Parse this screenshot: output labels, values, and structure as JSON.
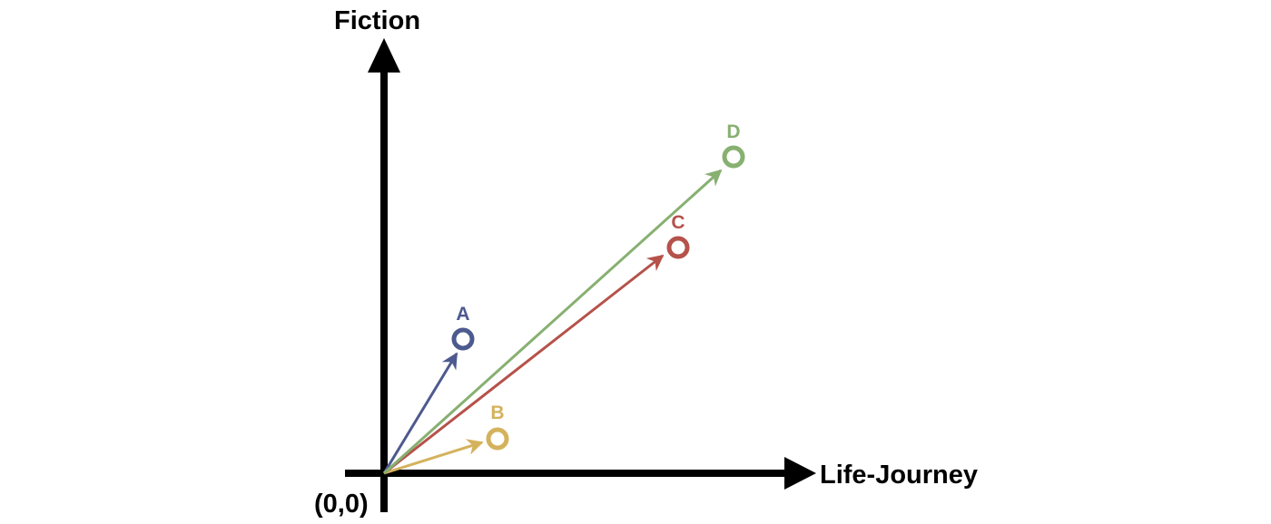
{
  "axes": {
    "x_label": "Life-Journey",
    "y_label": "Fiction",
    "origin_label": "(0,0)",
    "color": "#000000"
  },
  "vectors": [
    {
      "key": "a",
      "label": "A",
      "color": "#4d5a8f"
    },
    {
      "key": "b",
      "label": "B",
      "color": "#d4b25d"
    },
    {
      "key": "c",
      "label": "C",
      "color": "#b5524a"
    },
    {
      "key": "d",
      "label": "D",
      "color": "#87b071"
    }
  ]
}
